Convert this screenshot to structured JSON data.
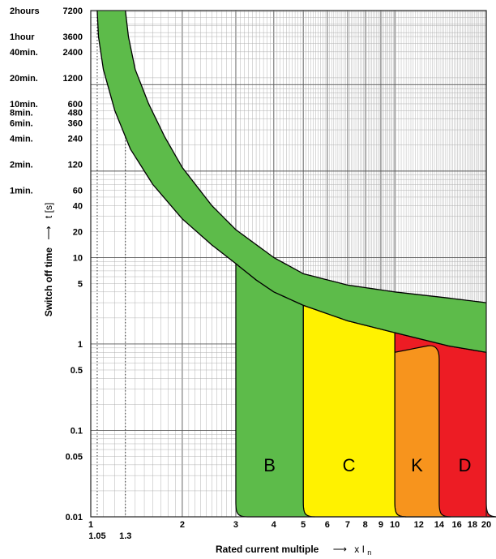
{
  "chart_data": {
    "type": "area",
    "title": "",
    "ylabel": "Switch off time",
    "ylabel_arrow": "⟶",
    "ylabel_unit": "t [s]",
    "xlabel": "Rated current multiple",
    "xlabel_arrow": "⟶",
    "xlabel_unit_prefix": "x I",
    "xlabel_unit_sub": "n",
    "x_scale": "log",
    "y_scale": "log",
    "xlim": [
      1,
      20
    ],
    "ylim": [
      0.01,
      7200
    ],
    "grid": true,
    "yticks": [
      {
        "value": 7200,
        "label": "7200",
        "time": "2hours"
      },
      {
        "value": 3600,
        "label": "3600",
        "time": "1hour"
      },
      {
        "value": 2400,
        "label": "2400",
        "time": "40min."
      },
      {
        "value": 1200,
        "label": "1200",
        "time": "20min."
      },
      {
        "value": 600,
        "label": "600",
        "time": "10min."
      },
      {
        "value": 480,
        "label": "480",
        "time": "8min."
      },
      {
        "value": 360,
        "label": "360",
        "time": "6min."
      },
      {
        "value": 240,
        "label": "240",
        "time": "4min."
      },
      {
        "value": 120,
        "label": "120",
        "time": "2min."
      },
      {
        "value": 60,
        "label": "60",
        "time": "1min."
      },
      {
        "value": 40,
        "label": "40",
        "time": ""
      },
      {
        "value": 20,
        "label": "20",
        "time": ""
      },
      {
        "value": 10,
        "label": "10",
        "time": ""
      },
      {
        "value": 5,
        "label": "5",
        "time": ""
      },
      {
        "value": 1,
        "label": "1",
        "time": ""
      },
      {
        "value": 0.5,
        "label": "0.5",
        "time": ""
      },
      {
        "value": 0.1,
        "label": "0.1",
        "time": ""
      },
      {
        "value": 0.05,
        "label": "0.05",
        "time": ""
      },
      {
        "value": 0.01,
        "label": "0.01",
        "time": ""
      }
    ],
    "xticks_top": [
      {
        "value": 1,
        "label": "1"
      },
      {
        "value": 2,
        "label": "2"
      },
      {
        "value": 3,
        "label": "3"
      },
      {
        "value": 4,
        "label": "4"
      },
      {
        "value": 5,
        "label": "5"
      },
      {
        "value": 6,
        "label": "6"
      },
      {
        "value": 7,
        "label": "7"
      },
      {
        "value": 8,
        "label": "8"
      },
      {
        "value": 9,
        "label": "9"
      },
      {
        "value": 10,
        "label": "10"
      },
      {
        "value": 12,
        "label": "12"
      },
      {
        "value": 14,
        "label": "14"
      },
      {
        "value": 16,
        "label": "16"
      },
      {
        "value": 18,
        "label": "18"
      },
      {
        "value": 20,
        "label": "20"
      }
    ],
    "xticks_bottom": [
      {
        "value": 1.05,
        "label": "1.05"
      },
      {
        "value": 1.3,
        "label": "1.3"
      }
    ],
    "dotted_lines_x": [
      1.05,
      1.3
    ],
    "thermal_band": {
      "color": "#5dbb4a",
      "upper": [
        [
          1.3,
          7200
        ],
        [
          1.33,
          3600
        ],
        [
          1.4,
          1500
        ],
        [
          1.55,
          600
        ],
        [
          1.75,
          250
        ],
        [
          2.0,
          110
        ],
        [
          2.5,
          40
        ],
        [
          3.0,
          21
        ],
        [
          4.0,
          10
        ],
        [
          5.0,
          6.5
        ],
        [
          7.0,
          4.8
        ],
        [
          10.0,
          4.0
        ],
        [
          15.0,
          3.4
        ],
        [
          20.0,
          3.0
        ]
      ],
      "lower": [
        [
          1.05,
          7200
        ],
        [
          1.06,
          3600
        ],
        [
          1.1,
          1500
        ],
        [
          1.2,
          500
        ],
        [
          1.35,
          180
        ],
        [
          1.6,
          70
        ],
        [
          2.0,
          28
        ],
        [
          2.5,
          14
        ],
        [
          3.0,
          8.5
        ],
        [
          3.5,
          5.5
        ],
        [
          4.0,
          4.0
        ],
        [
          5.0,
          2.8
        ],
        [
          7.0,
          1.85
        ],
        [
          10.0,
          1.35
        ],
        [
          15.0,
          0.95
        ],
        [
          20.0,
          0.8
        ]
      ]
    },
    "series": [
      {
        "name": "B",
        "color": "#5dbb4a",
        "x_left": 3,
        "x_right": 5
      },
      {
        "name": "C",
        "color": "#fff200",
        "x_left": 5,
        "x_right": 10
      },
      {
        "name": "K",
        "color": "#f7941d",
        "x_left": 10,
        "x_right": 14,
        "top": 0.8
      },
      {
        "name": "D",
        "color": "#ed1c24",
        "x_left": 10,
        "x_right": 20
      }
    ]
  }
}
